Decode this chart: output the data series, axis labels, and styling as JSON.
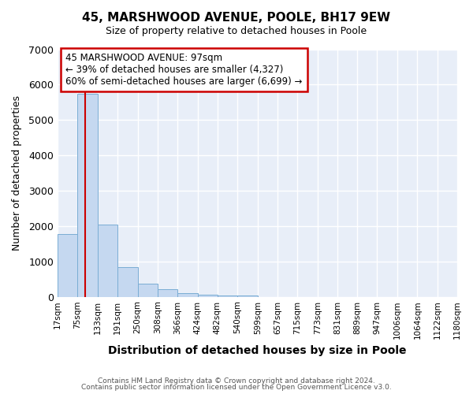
{
  "title": "45, MARSHWOOD AVENUE, POOLE, BH17 9EW",
  "subtitle": "Size of property relative to detached houses in Poole",
  "xlabel": "Distribution of detached houses by size in Poole",
  "ylabel": "Number of detached properties",
  "bar_values": [
    1780,
    5730,
    2050,
    830,
    370,
    220,
    100,
    55,
    45,
    30,
    0,
    0,
    0,
    0,
    0,
    0,
    0,
    0,
    0,
    0
  ],
  "bin_edges": [
    17,
    75,
    133,
    191,
    250,
    308,
    366,
    424,
    482,
    540,
    599,
    657,
    715,
    773,
    831,
    889,
    947,
    1006,
    1064,
    1122,
    1180
  ],
  "tick_labels": [
    "17sqm",
    "75sqm",
    "133sqm",
    "191sqm",
    "250sqm",
    "308sqm",
    "366sqm",
    "424sqm",
    "482sqm",
    "540sqm",
    "599sqm",
    "657sqm",
    "715sqm",
    "773sqm",
    "831sqm",
    "889sqm",
    "947sqm",
    "1006sqm",
    "1064sqm",
    "1122sqm",
    "1180sqm"
  ],
  "bar_color": "#c5d8f0",
  "bar_edgecolor": "#7aadd4",
  "property_line_x": 97,
  "property_line_color": "#cc0000",
  "ylim": [
    0,
    7000
  ],
  "yticks": [
    0,
    1000,
    2000,
    3000,
    4000,
    5000,
    6000,
    7000
  ],
  "annotation_title": "45 MARSHWOOD AVENUE: 97sqm",
  "annotation_line1": "← 39% of detached houses are smaller (4,327)",
  "annotation_line2": "60% of semi-detached houses are larger (6,699) →",
  "annotation_box_color": "#ffffff",
  "annotation_box_edgecolor": "#cc0000",
  "footer_line1": "Contains HM Land Registry data © Crown copyright and database right 2024.",
  "footer_line2": "Contains public sector information licensed under the Open Government Licence v3.0.",
  "fig_background_color": "#ffffff",
  "plot_background_color": "#e8eef8",
  "grid_color": "#ffffff"
}
